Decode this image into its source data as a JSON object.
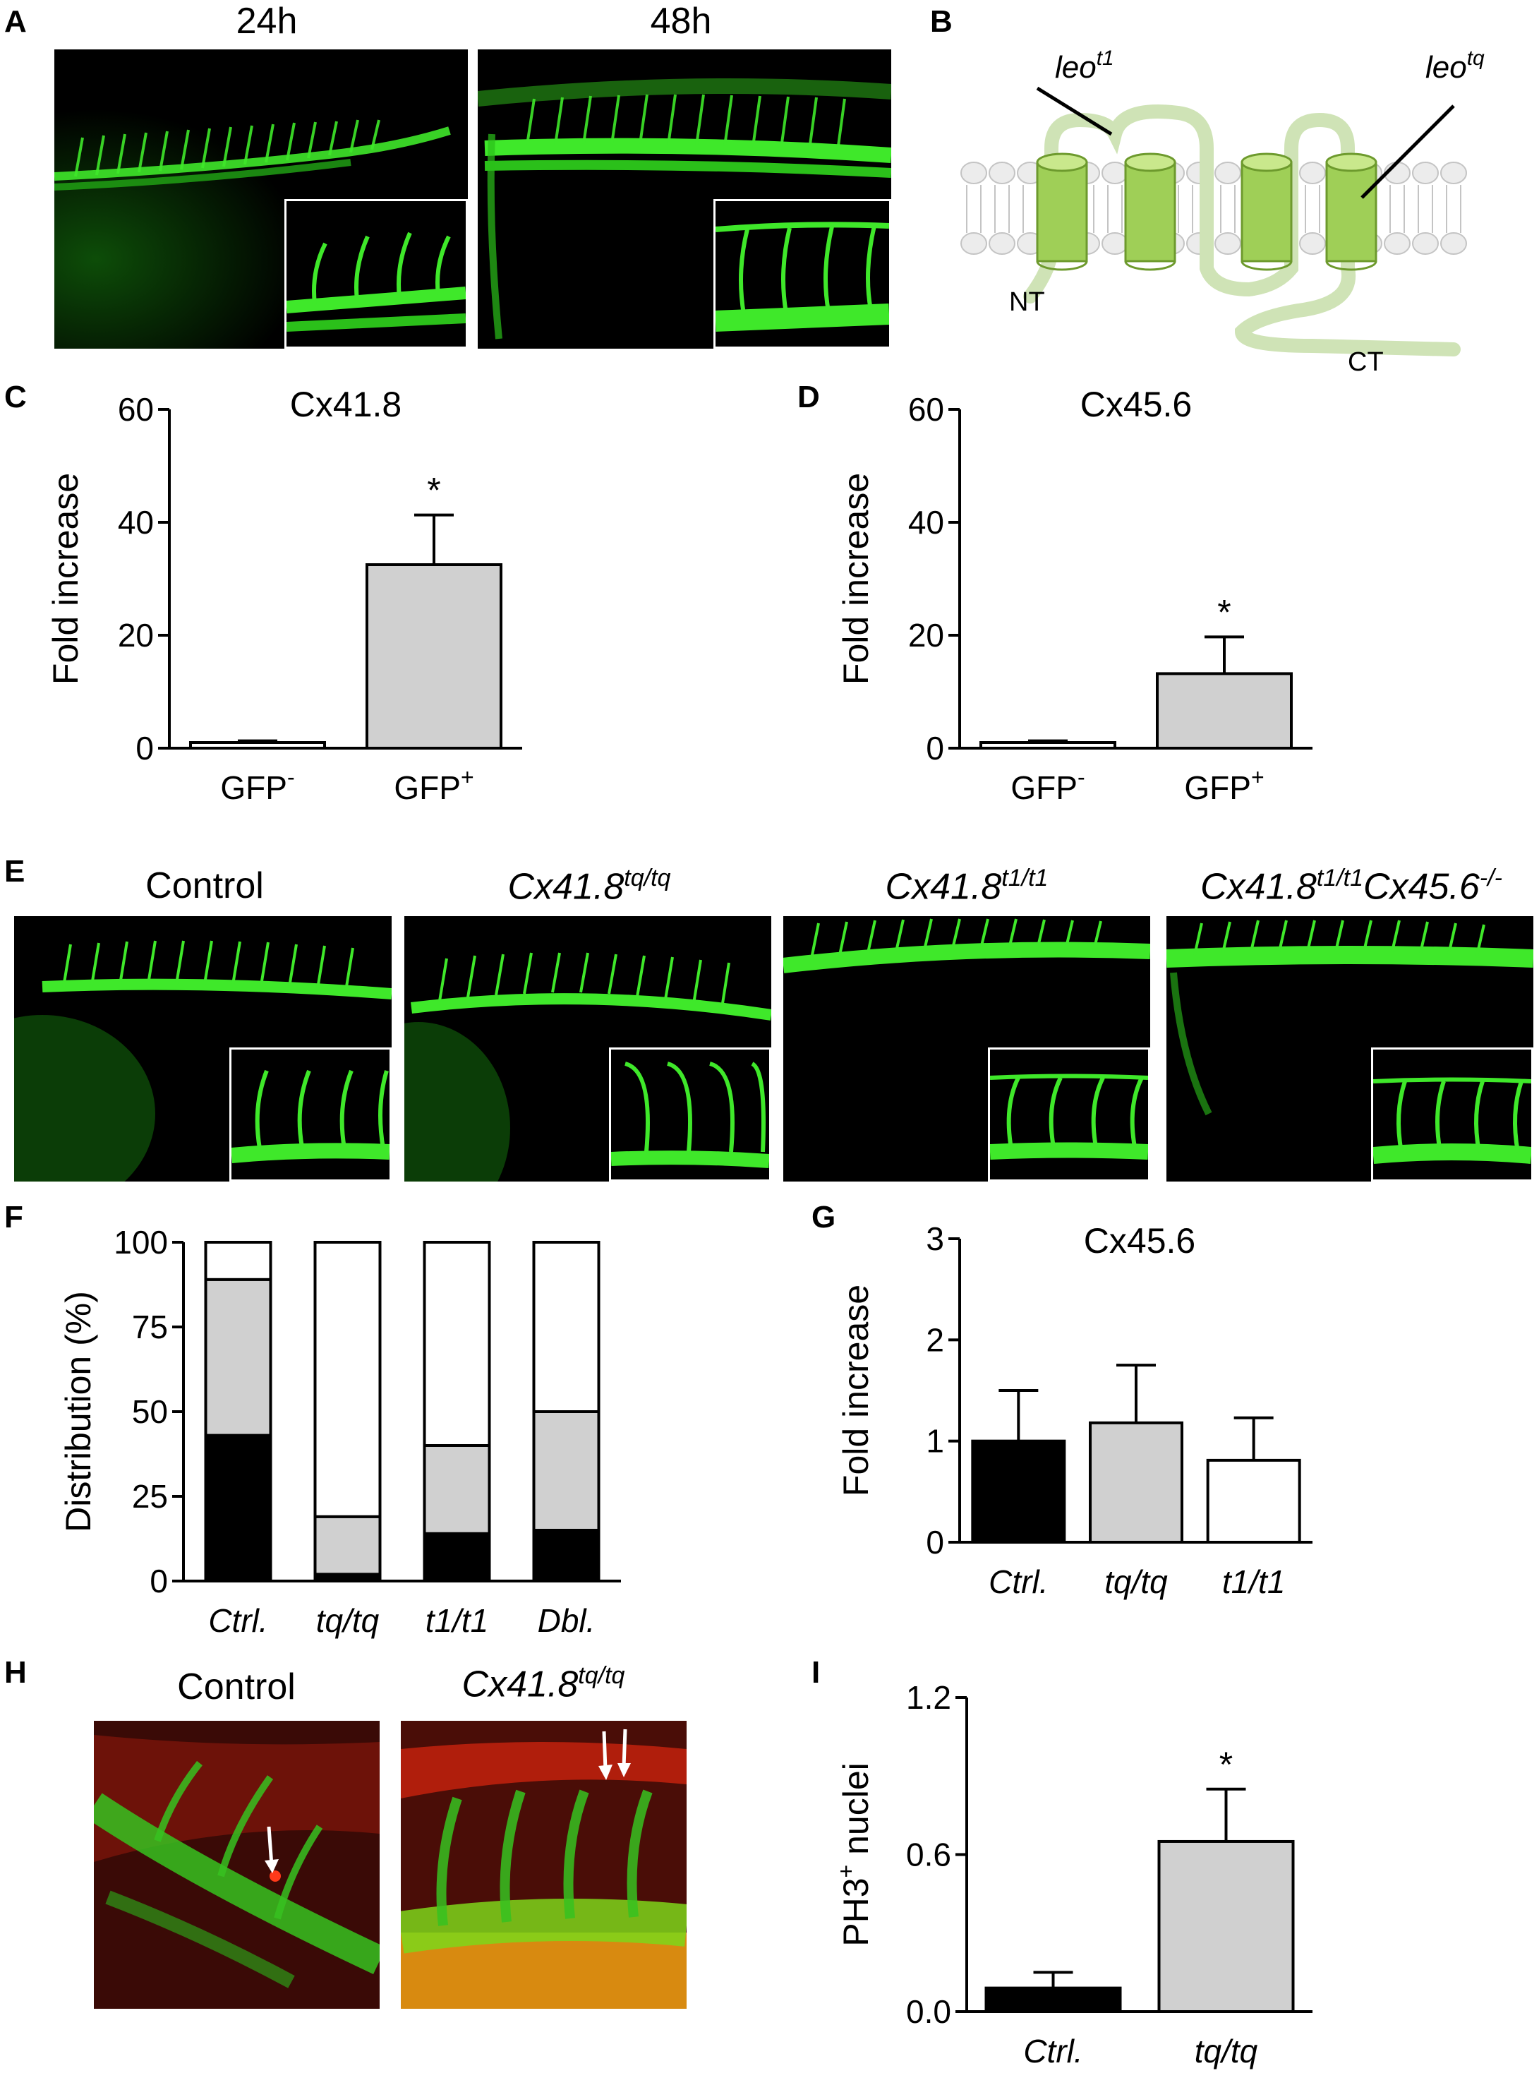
{
  "panels": {
    "A": {
      "letter": "A",
      "labels": [
        "24h",
        "48h"
      ]
    },
    "B": {
      "letter": "B",
      "mutation_left": "leo",
      "mutation_left_sup": "t1",
      "mutation_right": "leo",
      "mutation_right_sup": "tq",
      "nt": "NT",
      "ct": "CT"
    },
    "C": {
      "letter": "C"
    },
    "D": {
      "letter": "D"
    },
    "E": {
      "letter": "E",
      "labels": [
        {
          "base": "Control",
          "sup": "",
          "base2": "",
          "sup2": ""
        },
        {
          "base": "Cx41.8",
          "sup": "tq/tq",
          "base2": "",
          "sup2": ""
        },
        {
          "base": "Cx41.8",
          "sup": "t1/t1",
          "base2": "",
          "sup2": ""
        },
        {
          "base": "Cx41.8",
          "sup": "t1/t1",
          "base2": "Cx45.6",
          "sup2": "-/-"
        }
      ]
    },
    "F": {
      "letter": "F"
    },
    "G": {
      "letter": "G"
    },
    "H": {
      "letter": "H",
      "label_left": "Control",
      "label_right_base": "Cx41.8",
      "label_right_sup": "tq/tq"
    },
    "I": {
      "letter": "I"
    }
  },
  "colors": {
    "gfp": "#39d622",
    "bar_gray": "#d0d0d0",
    "bar_black": "#000000",
    "rfp": "#c81e0a"
  },
  "chart_data": [
    {
      "id": "C",
      "type": "bar",
      "title": "Cx41.8",
      "ylabel": "Fold increase",
      "categories": [
        "GFP-",
        "GFP+"
      ],
      "category_sups": [
        "-",
        "+"
      ],
      "category_bases": [
        "GFP",
        "GFP"
      ],
      "values": [
        1,
        32.5
      ],
      "errors": [
        0.3,
        8.8
      ],
      "significance": [
        "",
        "*"
      ],
      "ylim": [
        0,
        60
      ],
      "yticks": [
        0,
        20,
        40,
        60
      ],
      "ytick_labels": [
        "0",
        "20",
        "40",
        "60"
      ],
      "colors": [
        "#ffffff",
        "#d0d0d0"
      ]
    },
    {
      "id": "D",
      "type": "bar",
      "title": "Cx45.6",
      "ylabel": "Fold increase",
      "categories": [
        "GFP-",
        "GFP+"
      ],
      "category_sups": [
        "-",
        "+"
      ],
      "category_bases": [
        "GFP",
        "GFP"
      ],
      "values": [
        1,
        13.2
      ],
      "errors": [
        0.3,
        6.5
      ],
      "significance": [
        "",
        "*"
      ],
      "ylim": [
        0,
        60
      ],
      "yticks": [
        0,
        20,
        40,
        60
      ],
      "ytick_labels": [
        "0",
        "20",
        "40",
        "60"
      ],
      "colors": [
        "#ffffff",
        "#d0d0d0"
      ]
    },
    {
      "id": "F",
      "type": "bar",
      "stacked": true,
      "ylabel": "Distribution (%)",
      "categories": [
        "Ctrl.",
        "tq/tq",
        "t1/t1",
        "Dbl."
      ],
      "series": [
        {
          "color": "#000000",
          "values": [
            43,
            2,
            14,
            15
          ]
        },
        {
          "color": "#d0d0d0",
          "values": [
            46,
            17,
            26,
            35
          ]
        },
        {
          "color": "#ffffff",
          "values": [
            11,
            81,
            60,
            50
          ]
        }
      ],
      "ylim": [
        0,
        100
      ],
      "yticks": [
        0,
        25,
        50,
        75,
        100
      ],
      "ytick_labels": [
        "0",
        "25",
        "50",
        "75",
        "100"
      ]
    },
    {
      "id": "G",
      "type": "bar",
      "title": "Cx45.6",
      "ylabel": "Fold increase",
      "categories": [
        "Ctrl.",
        "tq/tq",
        "t1/t1"
      ],
      "values": [
        1.0,
        1.18,
        0.81
      ],
      "errors": [
        0.5,
        0.57,
        0.42
      ],
      "ylim": [
        0,
        3
      ],
      "yticks": [
        0,
        1,
        2,
        3
      ],
      "ytick_labels": [
        "0",
        "1",
        "2",
        "3"
      ],
      "colors": [
        "#000000",
        "#d0d0d0",
        "#ffffff"
      ]
    },
    {
      "id": "I",
      "type": "bar",
      "ylabel": "PH3+ nuclei",
      "ylabel_base": "PH3",
      "ylabel_sup": "+",
      "ylabel_rest": " nuclei",
      "categories": [
        "Ctrl.",
        "tq/tq"
      ],
      "values": [
        0.09,
        0.65
      ],
      "errors": [
        0.06,
        0.2
      ],
      "significance": [
        "",
        "*"
      ],
      "ylim": [
        0,
        1.2
      ],
      "yticks": [
        0,
        0.6,
        1.2
      ],
      "ytick_labels": [
        "0.0",
        "0.6",
        "1.2"
      ],
      "colors": [
        "#000000",
        "#d0d0d0"
      ]
    }
  ]
}
